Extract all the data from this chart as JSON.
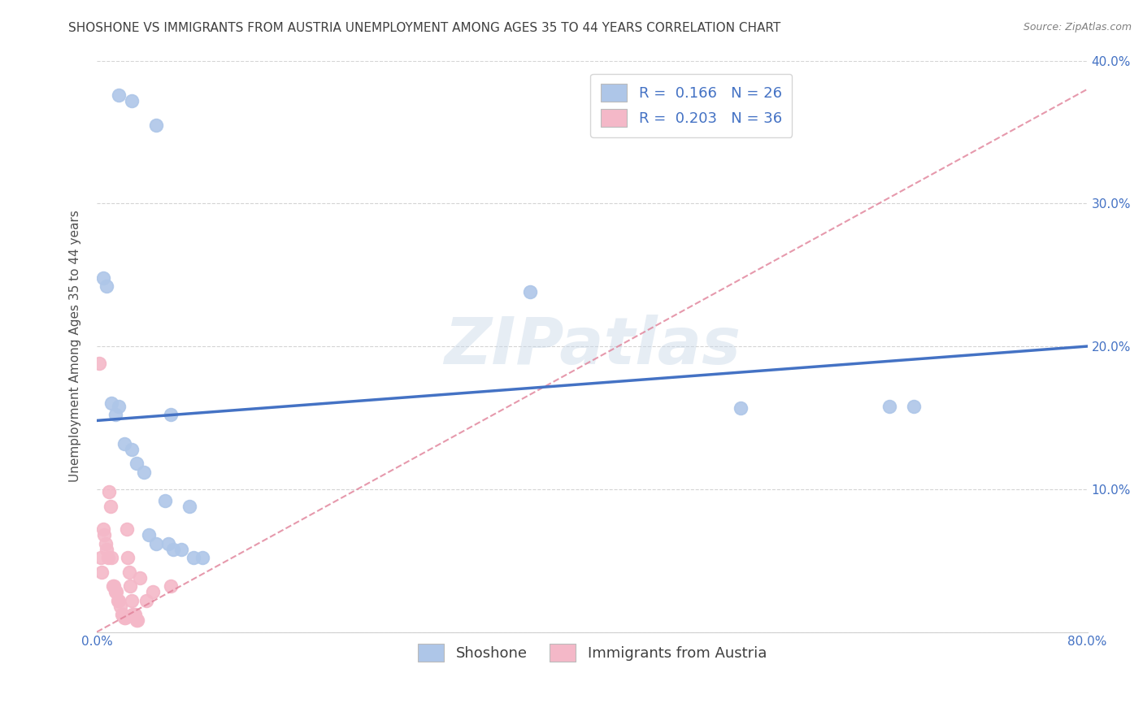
{
  "title": "SHOSHONE VS IMMIGRANTS FROM AUSTRIA UNEMPLOYMENT AMONG AGES 35 TO 44 YEARS CORRELATION CHART",
  "source": "Source: ZipAtlas.com",
  "ylabel": "Unemployment Among Ages 35 to 44 years",
  "xlim": [
    0,
    0.8
  ],
  "ylim": [
    0,
    0.4
  ],
  "xticks": [
    0.0,
    0.1,
    0.2,
    0.3,
    0.4,
    0.5,
    0.6,
    0.7,
    0.8
  ],
  "xtick_labels": [
    "0.0%",
    "",
    "",
    "",
    "",
    "",
    "",
    "",
    "80.0%"
  ],
  "yticks": [
    0.0,
    0.1,
    0.2,
    0.3,
    0.4
  ],
  "ytick_labels_right": [
    "",
    "10.0%",
    "20.0%",
    "30.0%",
    "40.0%"
  ],
  "legend_items": [
    {
      "label": "R =  0.166   N = 26",
      "color": "#aec6e8"
    },
    {
      "label": "R =  0.203   N = 36",
      "color": "#f4b8c8"
    }
  ],
  "legend_labels_bottom": [
    "Shoshone",
    "Immigrants from Austria"
  ],
  "watermark": "ZIPatlas",
  "blue_scatter_x": [
    0.018,
    0.028,
    0.048,
    0.005,
    0.008,
    0.012,
    0.015,
    0.018,
    0.022,
    0.028,
    0.032,
    0.038,
    0.042,
    0.048,
    0.055,
    0.058,
    0.062,
    0.068,
    0.075,
    0.078,
    0.085,
    0.35,
    0.52,
    0.06,
    0.64,
    0.66
  ],
  "blue_scatter_y": [
    0.376,
    0.372,
    0.355,
    0.248,
    0.242,
    0.16,
    0.152,
    0.158,
    0.132,
    0.128,
    0.118,
    0.112,
    0.068,
    0.062,
    0.092,
    0.062,
    0.058,
    0.058,
    0.088,
    0.052,
    0.052,
    0.238,
    0.157,
    0.152,
    0.158,
    0.158
  ],
  "pink_scatter_x": [
    0.002,
    0.003,
    0.004,
    0.005,
    0.006,
    0.007,
    0.008,
    0.009,
    0.01,
    0.011,
    0.012,
    0.013,
    0.014,
    0.015,
    0.016,
    0.017,
    0.018,
    0.019,
    0.02,
    0.021,
    0.022,
    0.023,
    0.024,
    0.025,
    0.026,
    0.027,
    0.028,
    0.029,
    0.03,
    0.031,
    0.032,
    0.033,
    0.035,
    0.04,
    0.045,
    0.06
  ],
  "pink_scatter_y": [
    0.188,
    0.052,
    0.042,
    0.072,
    0.068,
    0.062,
    0.058,
    0.052,
    0.098,
    0.088,
    0.052,
    0.032,
    0.032,
    0.028,
    0.028,
    0.022,
    0.022,
    0.018,
    0.012,
    0.012,
    0.01,
    0.01,
    0.072,
    0.052,
    0.042,
    0.032,
    0.022,
    0.012,
    0.012,
    0.012,
    0.008,
    0.008,
    0.038,
    0.022,
    0.028,
    0.032
  ],
  "blue_line_x": [
    0.0,
    0.8
  ],
  "blue_line_y": [
    0.148,
    0.2
  ],
  "pink_line_x": [
    0.0,
    0.8
  ],
  "pink_line_y": [
    0.0,
    0.38
  ],
  "scatter_size": 130,
  "blue_scatter_color": "#aec6e8",
  "pink_scatter_color": "#f4b8c8",
  "blue_line_color": "#4472c4",
  "pink_line_color": "#e08098",
  "grid_color": "#d0d0d0",
  "bg_color": "#ffffff",
  "title_color": "#404040",
  "axis_label_color": "#505050",
  "tick_label_color": "#4472c4",
  "watermark_color": "#c8d8e8",
  "title_fontsize": 11,
  "axis_label_fontsize": 11,
  "tick_fontsize": 11,
  "legend_fontsize": 13,
  "watermark_fontsize": 58
}
